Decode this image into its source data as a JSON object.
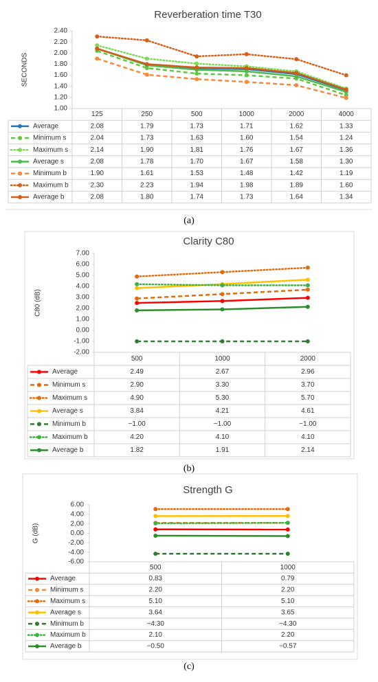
{
  "chart_data": [
    {
      "type": "line",
      "title": "Reverberation time T30",
      "y_label": "SECONDS",
      "caption": "(a)",
      "categories": [
        "125",
        "250",
        "500",
        "1000",
        "2000",
        "4000"
      ],
      "ylim": [
        1.0,
        2.4
      ],
      "yticks": [
        {
          "value": 1.0,
          "label": "1.00"
        },
        {
          "value": 1.2,
          "label": "1.20"
        },
        {
          "value": 1.4,
          "label": "1.40"
        },
        {
          "value": 1.6,
          "label": "1.60"
        },
        {
          "value": 1.8,
          "label": "1.80"
        },
        {
          "value": 2.0,
          "label": "2.00"
        },
        {
          "value": 2.2,
          "label": "2.20"
        },
        {
          "value": 2.4,
          "label": "2.40"
        }
      ],
      "grid": false,
      "series": [
        {
          "name": "Average",
          "color": "#2e75b6",
          "dash": "solid",
          "values": [
            2.08,
            1.79,
            1.73,
            1.71,
            1.62,
            1.33
          ],
          "value_labels": [
            "2.08",
            "1.79",
            "1.73",
            "1.71",
            "1.62",
            "1.33"
          ]
        },
        {
          "name": "Minimum s",
          "color": "#5fc83f",
          "dash": "dash",
          "values": [
            2.04,
            1.73,
            1.63,
            1.6,
            1.54,
            1.24
          ],
          "value_labels": [
            "2.04",
            "1.73",
            "1.63",
            "1.60",
            "1.54",
            "1.24"
          ]
        },
        {
          "name": "Maximum s",
          "color": "#7ed957",
          "dash": "dot",
          "values": [
            2.14,
            1.9,
            1.81,
            1.76,
            1.67,
            1.36
          ],
          "value_labels": [
            "2.14",
            "1.90",
            "1.81",
            "1.76",
            "1.67",
            "1.36"
          ]
        },
        {
          "name": "Average s",
          "color": "#4cbb4c",
          "dash": "solid",
          "values": [
            2.08,
            1.78,
            1.7,
            1.67,
            1.58,
            1.3
          ],
          "value_labels": [
            "2.08",
            "1.78",
            "1.70",
            "1.67",
            "1.58",
            "1.30"
          ]
        },
        {
          "name": "Minimum b",
          "color": "#f58a3c",
          "dash": "dash",
          "values": [
            1.9,
            1.61,
            1.53,
            1.48,
            1.42,
            1.19
          ],
          "value_labels": [
            "1.90",
            "1.61",
            "1.53",
            "1.48",
            "1.42",
            "1.19"
          ]
        },
        {
          "name": "Maximum b",
          "color": "#d65f1a",
          "dash": "dot",
          "values": [
            2.3,
            2.23,
            1.94,
            1.98,
            1.89,
            1.6
          ],
          "value_labels": [
            "2.30",
            "2.23",
            "1.94",
            "1.98",
            "1.89",
            "1.60"
          ]
        },
        {
          "name": "Average b",
          "color": "#cf5d17",
          "dash": "solid",
          "values": [
            2.08,
            1.8,
            1.74,
            1.73,
            1.64,
            1.34
          ],
          "value_labels": [
            "2.08",
            "1.80",
            "1.74",
            "1.73",
            "1.64",
            "1.34"
          ]
        }
      ]
    },
    {
      "type": "line",
      "title": "Clarity C80",
      "y_label": "C80 (dB)",
      "caption": "(b)",
      "categories": [
        "500",
        "1000",
        "2000"
      ],
      "ylim": [
        -2.0,
        7.0
      ],
      "yticks": [
        {
          "value": -2.0,
          "label": "-2.00"
        },
        {
          "value": -1.0,
          "label": "-1.00"
        },
        {
          "value": 0.0,
          "label": "0.00"
        },
        {
          "value": 1.0,
          "label": "1.00"
        },
        {
          "value": 2.0,
          "label": "2.00"
        },
        {
          "value": 3.0,
          "label": "3.00"
        },
        {
          "value": 4.0,
          "label": "4.00"
        },
        {
          "value": 5.0,
          "label": "5.00"
        },
        {
          "value": 6.0,
          "label": "6.00"
        },
        {
          "value": 7.0,
          "label": "7.00"
        }
      ],
      "grid": false,
      "series": [
        {
          "name": "Average",
          "color": "#ff0000",
          "dash": "solid",
          "values": [
            2.49,
            2.67,
            2.96
          ],
          "value_labels": [
            "2.49",
            "2.67",
            "2.96"
          ]
        },
        {
          "name": "Minimum s",
          "color": "#e36c0a",
          "dash": "dash",
          "values": [
            2.9,
            3.3,
            3.7
          ],
          "value_labels": [
            "2.90",
            "3.30",
            "3.70"
          ]
        },
        {
          "name": "Maximum s",
          "color": "#e36c0a",
          "dash": "dot",
          "values": [
            4.9,
            5.3,
            5.7
          ],
          "value_labels": [
            "4.90",
            "5.30",
            "5.70"
          ]
        },
        {
          "name": "Average s",
          "color": "#ffc000",
          "dash": "solid",
          "values": [
            3.84,
            4.21,
            4.61
          ],
          "value_labels": [
            "3.84",
            "4.21",
            "4.61"
          ]
        },
        {
          "name": "Minimum b",
          "color": "#2e7d32",
          "dash": "dash",
          "values": [
            -1.0,
            -1.0,
            -1.0
          ],
          "value_labels": [
            "−1.00",
            "−1.00",
            "−1.00"
          ]
        },
        {
          "name": "Maximum b",
          "color": "#3cb043",
          "dash": "dot",
          "values": [
            4.2,
            4.1,
            4.1
          ],
          "value_labels": [
            "4.20",
            "4.10",
            "4.10"
          ]
        },
        {
          "name": "Average b",
          "color": "#2e8b2e",
          "dash": "solid",
          "values": [
            1.82,
            1.91,
            2.14
          ],
          "value_labels": [
            "1.82",
            "1.91",
            "2.14"
          ]
        }
      ]
    },
    {
      "type": "line",
      "title": "Strength G",
      "y_label": "G (dB)",
      "caption": "(c)",
      "categories": [
        "500",
        "1000"
      ],
      "ylim": [
        -6.0,
        6.0
      ],
      "yticks": [
        {
          "value": -6.0,
          "label": "-6.00"
        },
        {
          "value": -4.0,
          "label": "-4.00"
        },
        {
          "value": -2.0,
          "label": "-2.00"
        },
        {
          "value": 0.0,
          "label": "0.00"
        },
        {
          "value": 2.0,
          "label": "2.00"
        },
        {
          "value": 4.0,
          "label": "4.00"
        },
        {
          "value": 6.0,
          "label": "6.00"
        }
      ],
      "grid": false,
      "series": [
        {
          "name": "Average",
          "color": "#ff0000",
          "dash": "solid",
          "values": [
            0.83,
            0.79
          ],
          "value_labels": [
            "0.83",
            "0.79"
          ]
        },
        {
          "name": "Minimum s",
          "color": "#f58a3c",
          "dash": "dash",
          "values": [
            2.2,
            2.2
          ],
          "value_labels": [
            "2.20",
            "2.20"
          ]
        },
        {
          "name": "Maximum s",
          "color": "#e36c0a",
          "dash": "dot",
          "values": [
            5.1,
            5.1
          ],
          "value_labels": [
            "5.10",
            "5.10"
          ]
        },
        {
          "name": "Average s",
          "color": "#ffc000",
          "dash": "solid",
          "values": [
            3.64,
            3.65
          ],
          "value_labels": [
            "3.64",
            "3.65"
          ]
        },
        {
          "name": "Minimum b",
          "color": "#2e7d32",
          "dash": "dash",
          "values": [
            -4.3,
            -4.3
          ],
          "value_labels": [
            "−4.30",
            "−4.30"
          ]
        },
        {
          "name": "Maximum b",
          "color": "#3cb043",
          "dash": "dot",
          "values": [
            2.1,
            2.2
          ],
          "value_labels": [
            "2.10",
            "2.20"
          ]
        },
        {
          "name": "Average b",
          "color": "#2e8b2e",
          "dash": "solid",
          "values": [
            -0.5,
            -0.57
          ],
          "value_labels": [
            "−0.50",
            "−0.57"
          ]
        }
      ]
    }
  ]
}
